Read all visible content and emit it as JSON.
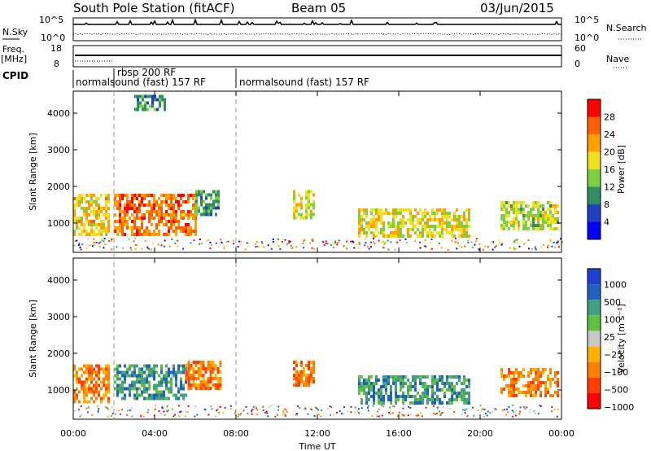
{
  "header": {
    "station": "South Pole Station (fitACF)",
    "beam": "Beam 05",
    "date": "03/Jun/2015"
  },
  "nsky_panel": {
    "left_label": "N.Sky",
    "right_label": "N.Search",
    "left_ticks": [
      "10^5",
      "10^0"
    ],
    "right_ticks": [
      "10^5",
      "10^0"
    ]
  },
  "freq_panel": {
    "left_label_1": "Freq.",
    "left_label_2": "[MHz]",
    "right_label": "Nave",
    "left_ticks": [
      "18",
      "8"
    ],
    "right_ticks": [
      "60",
      "0"
    ]
  },
  "cpid_panel": {
    "label": "CPID",
    "segments": [
      {
        "start_hour": 0.0,
        "end_hour": 2.0,
        "text": "normalsound (fast) 157 RF"
      },
      {
        "start_hour": 2.0,
        "end_hour": 7.9,
        "text": "rbsp 200 RF"
      },
      {
        "start_hour": 7.9,
        "end_hour": 24.0,
        "text": "normalsound (fast) 157 RF"
      }
    ]
  },
  "colors": {
    "power_scale": [
      "#0000ff",
      "#2040c0",
      "#2f8f60",
      "#7fcf40",
      "#f0e020",
      "#ffa000",
      "#ff6000",
      "#ff0000"
    ],
    "velocity_scale": [
      "#ff0000",
      "#ff4000",
      "#ff8000",
      "#ffb000",
      "#c8c8c8",
      "#60c040",
      "#40a080",
      "#2060c0",
      "#2040d0"
    ]
  },
  "chart_data": [
    {
      "type": "heatmap",
      "title": "",
      "xlabel": "",
      "ylabel": "Slant Range [km]",
      "xlim": [
        0,
        24
      ],
      "ylim": [
        200,
        4600
      ],
      "y_ticks": [
        "1000",
        "2000",
        "3000",
        "4000"
      ],
      "colorbar_label": "Power [dB]",
      "colorbar_ticks": [
        "4",
        "8",
        "12",
        "16",
        "20",
        "24",
        "28"
      ],
      "regions": [
        {
          "t0": 0.0,
          "t1": 1.8,
          "r0": 700,
          "r1": 1800,
          "v": 20
        },
        {
          "t0": 2.0,
          "t1": 6.0,
          "r0": 700,
          "r1": 1800,
          "v": 26
        },
        {
          "t0": 3.0,
          "t1": 4.5,
          "r0": 4100,
          "r1": 4500,
          "v": 8
        },
        {
          "t0": 6.0,
          "t1": 7.2,
          "r0": 1200,
          "r1": 1900,
          "v": 10
        },
        {
          "t0": 10.8,
          "t1": 11.8,
          "r0": 1100,
          "r1": 1900,
          "v": 18
        },
        {
          "t0": 14.0,
          "t1": 19.5,
          "r0": 600,
          "r1": 1400,
          "v": 18
        },
        {
          "t0": 21.0,
          "t1": 23.8,
          "r0": 800,
          "r1": 1600,
          "v": 16
        }
      ]
    },
    {
      "type": "heatmap",
      "title": "",
      "xlabel": "Time UT",
      "ylabel": "Slant Range [km]",
      "xlim": [
        0,
        24
      ],
      "ylim": [
        200,
        4600
      ],
      "y_ticks": [
        "1000",
        "2000",
        "3000",
        "4000"
      ],
      "x_ticks": [
        "00:00",
        "04:00",
        "08:00",
        "12:00",
        "16:00",
        "20:00",
        "00:00"
      ],
      "colorbar_label": "Velocity [m s⁻¹]",
      "colorbar_ticks": [
        "1000",
        "500",
        "100",
        "25",
        "−25",
        "−100",
        "−500",
        "−1000"
      ],
      "regions": [
        {
          "t0": 0.0,
          "t1": 1.8,
          "r0": 700,
          "r1": 1700,
          "v": -200
        },
        {
          "t0": 2.0,
          "t1": 5.5,
          "r0": 800,
          "r1": 1700,
          "v": 150
        },
        {
          "t0": 5.5,
          "t1": 7.2,
          "r0": 1000,
          "r1": 1800,
          "v": -200
        },
        {
          "t0": 10.8,
          "t1": 11.8,
          "r0": 1100,
          "r1": 1800,
          "v": -300
        },
        {
          "t0": 14.0,
          "t1": 19.5,
          "r0": 600,
          "r1": 1400,
          "v": 100
        },
        {
          "t0": 21.0,
          "t1": 23.8,
          "r0": 800,
          "r1": 1600,
          "v": -150
        }
      ]
    }
  ]
}
